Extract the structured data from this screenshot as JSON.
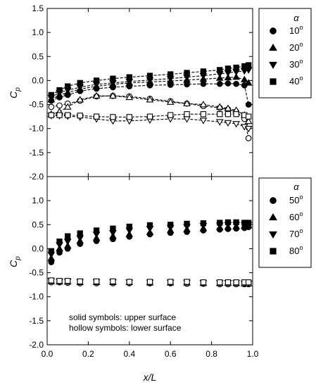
{
  "chart_data": [
    {
      "type": "scatter",
      "panel": "top",
      "xlabel": "",
      "ylabel": "Cp",
      "ylabel_main": "C",
      "ylabel_sub": "p",
      "xlim": [
        0,
        1.0
      ],
      "ylim": [
        -2.0,
        1.5
      ],
      "y_ticks": [
        "1.5",
        "1.0",
        "0.5",
        "0.0",
        "-0.5",
        "-1.0",
        "-1.5",
        "-2.0"
      ],
      "y_tick_values": [
        1.5,
        1.0,
        0.5,
        0.0,
        -0.5,
        -1.0,
        -1.5,
        -2.0
      ],
      "x_tick_values": [
        0,
        0.2,
        0.4,
        0.6,
        0.8,
        1.0
      ],
      "connected": true,
      "legend": {
        "position": "right",
        "title": "α",
        "entries": [
          {
            "marker": "circle",
            "label_main": "10",
            "label_sup": "o"
          },
          {
            "marker": "triangle-up",
            "label_main": "20",
            "label_sup": "o"
          },
          {
            "marker": "triangle-down",
            "label_main": "30",
            "label_sup": "o"
          },
          {
            "marker": "square",
            "label_main": "40",
            "label_sup": "o"
          }
        ]
      },
      "series": [
        {
          "alpha": 10,
          "marker": "circle",
          "surface": "upper",
          "filled": true,
          "x": [
            0.02,
            0.06,
            0.1,
            0.16,
            0.24,
            0.32,
            0.4,
            0.5,
            0.6,
            0.68,
            0.76,
            0.84,
            0.88,
            0.92,
            0.96,
            0.98
          ],
          "y": [
            -0.42,
            -0.35,
            -0.3,
            -0.22,
            -0.17,
            -0.14,
            -0.12,
            -0.1,
            -0.09,
            -0.08,
            -0.07,
            -0.07,
            -0.06,
            -0.07,
            -0.1,
            -0.5
          ]
        },
        {
          "alpha": 10,
          "marker": "circle",
          "surface": "lower",
          "filled": false,
          "x": [
            0.02,
            0.06,
            0.1,
            0.16,
            0.24,
            0.32,
            0.4,
            0.5,
            0.6,
            0.68,
            0.76,
            0.84,
            0.88,
            0.92,
            0.96,
            0.98
          ],
          "y": [
            -0.55,
            -0.52,
            -0.48,
            -0.42,
            -0.33,
            -0.32,
            -0.33,
            -0.38,
            -0.43,
            -0.48,
            -0.53,
            -0.57,
            -0.6,
            -0.65,
            -0.8,
            -1.2
          ]
        },
        {
          "alpha": 20,
          "marker": "triangle-up",
          "surface": "upper",
          "filled": true,
          "x": [
            0.02,
            0.06,
            0.1,
            0.16,
            0.24,
            0.32,
            0.4,
            0.5,
            0.6,
            0.68,
            0.76,
            0.84,
            0.88,
            0.92,
            0.96,
            0.98
          ],
          "y": [
            -0.4,
            -0.3,
            -0.25,
            -0.18,
            -0.12,
            -0.08,
            -0.05,
            -0.03,
            -0.01,
            0.01,
            0.03,
            0.05,
            0.06,
            0.07,
            0.02,
            -0.05
          ]
        },
        {
          "alpha": 20,
          "marker": "triangle-up",
          "surface": "lower",
          "filled": false,
          "x": [
            0.02,
            0.06,
            0.1,
            0.16,
            0.24,
            0.32,
            0.4,
            0.5,
            0.6,
            0.68,
            0.76,
            0.84,
            0.88,
            0.92,
            0.96,
            0.98
          ],
          "y": [
            -0.7,
            -0.65,
            -0.55,
            -0.4,
            -0.32,
            -0.32,
            -0.35,
            -0.4,
            -0.45,
            -0.48,
            -0.5,
            -0.55,
            -0.58,
            -0.62,
            -0.72,
            -0.85
          ]
        },
        {
          "alpha": 30,
          "marker": "triangle-down",
          "surface": "upper",
          "filled": true,
          "x": [
            0.02,
            0.06,
            0.1,
            0.16,
            0.24,
            0.32,
            0.4,
            0.5,
            0.6,
            0.68,
            0.76,
            0.84,
            0.88,
            0.92,
            0.96,
            0.98
          ],
          "y": [
            -0.35,
            -0.25,
            -0.2,
            -0.14,
            -0.08,
            -0.05,
            -0.02,
            0.01,
            0.04,
            0.07,
            0.1,
            0.14,
            0.16,
            0.18,
            0.2,
            0.22
          ]
        },
        {
          "alpha": 30,
          "marker": "triangle-down",
          "surface": "lower",
          "filled": false,
          "x": [
            0.02,
            0.06,
            0.1,
            0.16,
            0.24,
            0.32,
            0.4,
            0.5,
            0.6,
            0.68,
            0.76,
            0.84,
            0.88,
            0.92,
            0.96,
            0.98
          ],
          "y": [
            -0.73,
            -0.73,
            -0.74,
            -0.76,
            -0.8,
            -0.84,
            -0.84,
            -0.82,
            -0.8,
            -0.8,
            -0.83,
            -0.86,
            -0.88,
            -0.9,
            -0.96,
            -1.0
          ]
        },
        {
          "alpha": 40,
          "marker": "square",
          "surface": "upper",
          "filled": true,
          "x": [
            0.02,
            0.06,
            0.1,
            0.16,
            0.24,
            0.32,
            0.4,
            0.5,
            0.6,
            0.68,
            0.76,
            0.84,
            0.88,
            0.92,
            0.96,
            0.98
          ],
          "y": [
            -0.3,
            -0.2,
            -0.12,
            -0.05,
            0.0,
            0.04,
            0.07,
            0.1,
            0.13,
            0.16,
            0.19,
            0.22,
            0.25,
            0.27,
            0.3,
            0.32
          ]
        },
        {
          "alpha": 40,
          "marker": "square",
          "surface": "lower",
          "filled": false,
          "x": [
            0.02,
            0.06,
            0.1,
            0.16,
            0.24,
            0.32,
            0.4,
            0.5,
            0.6,
            0.68,
            0.76,
            0.84,
            0.88,
            0.92,
            0.96,
            0.98
          ],
          "y": [
            -0.72,
            -0.72,
            -0.72,
            -0.73,
            -0.75,
            -0.76,
            -0.76,
            -0.75,
            -0.72,
            -0.7,
            -0.7,
            -0.7,
            -0.7,
            -0.7,
            -0.72,
            -0.75
          ]
        }
      ]
    },
    {
      "type": "scatter",
      "panel": "bottom",
      "xlabel": "x/L",
      "ylabel": "Cp",
      "ylabel_main": "C",
      "ylabel_sub": "p",
      "xlim": [
        0,
        1.0
      ],
      "ylim": [
        -2.0,
        1.5
      ],
      "y_ticks": [
        "1.0",
        "0.5",
        "0.0",
        "-0.5",
        "-1.0",
        "-1.5",
        "-2.0"
      ],
      "y_tick_values": [
        1.0,
        0.5,
        0.0,
        -0.5,
        -1.0,
        -1.5,
        -2.0
      ],
      "x_ticks": [
        "0.0",
        "0.2",
        "0.4",
        "0.6",
        "0.8",
        "1.0"
      ],
      "x_tick_values": [
        0,
        0.2,
        0.4,
        0.6,
        0.8,
        1.0
      ],
      "connected": false,
      "legend": {
        "position": "right",
        "title": "α",
        "entries": [
          {
            "marker": "circle",
            "label_main": "50",
            "label_sup": "o"
          },
          {
            "marker": "triangle-up",
            "label_main": "60",
            "label_sup": "o"
          },
          {
            "marker": "triangle-down",
            "label_main": "70",
            "label_sup": "o"
          },
          {
            "marker": "square",
            "label_main": "80",
            "label_sup": "o"
          }
        ]
      },
      "annotations": [
        "solid symbols: upper surface",
        "hollow symbols: lower surface"
      ],
      "series": [
        {
          "alpha": 50,
          "marker": "circle",
          "surface": "upper",
          "filled": true,
          "x": [
            0.02,
            0.06,
            0.1,
            0.16,
            0.24,
            0.32,
            0.4,
            0.5,
            0.6,
            0.68,
            0.76,
            0.84,
            0.88,
            0.92,
            0.96,
            0.98
          ],
          "y": [
            -0.28,
            -0.08,
            0.0,
            0.1,
            0.16,
            0.2,
            0.25,
            0.3,
            0.33,
            0.35,
            0.38,
            0.4,
            0.41,
            0.42,
            0.43,
            0.45
          ]
        },
        {
          "alpha": 50,
          "marker": "circle",
          "surface": "lower",
          "filled": false,
          "x": [
            0.02,
            0.06,
            0.1,
            0.16,
            0.24,
            0.32,
            0.4,
            0.5,
            0.6,
            0.68,
            0.76,
            0.84,
            0.88,
            0.92,
            0.96,
            0.98
          ],
          "y": [
            -0.7,
            -0.7,
            -0.71,
            -0.72,
            -0.72,
            -0.72,
            -0.72,
            -0.72,
            -0.72,
            -0.73,
            -0.73,
            -0.74,
            -0.74,
            -0.74,
            -0.74,
            -0.74
          ]
        },
        {
          "alpha": 60,
          "marker": "triangle-up",
          "surface": "upper",
          "filled": true,
          "x": [
            0.02,
            0.06,
            0.1,
            0.16,
            0.24,
            0.32,
            0.4,
            0.5,
            0.6,
            0.68,
            0.76,
            0.84,
            0.88,
            0.92,
            0.96,
            0.98
          ],
          "y": [
            -0.2,
            0.0,
            0.06,
            0.16,
            0.22,
            0.26,
            0.3,
            0.34,
            0.38,
            0.4,
            0.42,
            0.44,
            0.45,
            0.46,
            0.47,
            0.48
          ]
        },
        {
          "alpha": 60,
          "marker": "triangle-up",
          "surface": "lower",
          "filled": false,
          "x": [
            0.02,
            0.06,
            0.1,
            0.16,
            0.24,
            0.32,
            0.4,
            0.5,
            0.6,
            0.68,
            0.76,
            0.84,
            0.88,
            0.92,
            0.96,
            0.98
          ],
          "y": [
            -0.68,
            -0.69,
            -0.69,
            -0.7,
            -0.7,
            -0.7,
            -0.7,
            -0.71,
            -0.71,
            -0.71,
            -0.72,
            -0.72,
            -0.72,
            -0.72,
            -0.73,
            -0.73
          ]
        },
        {
          "alpha": 70,
          "marker": "triangle-down",
          "surface": "upper",
          "filled": true,
          "x": [
            0.02,
            0.06,
            0.1,
            0.16,
            0.24,
            0.32,
            0.4,
            0.5,
            0.6,
            0.68,
            0.76,
            0.84,
            0.88,
            0.92,
            0.96,
            0.98
          ],
          "y": [
            -0.12,
            0.08,
            0.15,
            0.22,
            0.3,
            0.33,
            0.38,
            0.42,
            0.44,
            0.46,
            0.48,
            0.49,
            0.5,
            0.5,
            0.5,
            0.5
          ]
        },
        {
          "alpha": 70,
          "marker": "triangle-down",
          "surface": "lower",
          "filled": false,
          "x": [
            0.02,
            0.06,
            0.1,
            0.16,
            0.24,
            0.32,
            0.4,
            0.5,
            0.6,
            0.68,
            0.76,
            0.84,
            0.88,
            0.92,
            0.96,
            0.98
          ],
          "y": [
            -0.67,
            -0.68,
            -0.68,
            -0.69,
            -0.69,
            -0.69,
            -0.7,
            -0.7,
            -0.7,
            -0.7,
            -0.71,
            -0.71,
            -0.71,
            -0.71,
            -0.72,
            -0.72
          ]
        },
        {
          "alpha": 80,
          "marker": "square",
          "surface": "upper",
          "filled": true,
          "x": [
            0.02,
            0.06,
            0.1,
            0.16,
            0.24,
            0.32,
            0.4,
            0.5,
            0.6,
            0.68,
            0.76,
            0.84,
            0.88,
            0.92,
            0.96,
            0.98
          ],
          "y": [
            -0.05,
            0.15,
            0.26,
            0.32,
            0.38,
            0.42,
            0.46,
            0.49,
            0.5,
            0.52,
            0.53,
            0.54,
            0.55,
            0.55,
            0.54,
            0.54
          ]
        },
        {
          "alpha": 80,
          "marker": "square",
          "surface": "lower",
          "filled": false,
          "x": [
            0.02,
            0.06,
            0.1,
            0.16,
            0.24,
            0.32,
            0.4,
            0.5,
            0.6,
            0.68,
            0.76,
            0.84,
            0.88,
            0.92,
            0.96,
            0.98
          ],
          "y": [
            -0.66,
            -0.67,
            -0.67,
            -0.68,
            -0.68,
            -0.68,
            -0.69,
            -0.69,
            -0.69,
            -0.69,
            -0.7,
            -0.7,
            -0.7,
            -0.7,
            -0.7,
            -0.7
          ]
        }
      ]
    }
  ]
}
